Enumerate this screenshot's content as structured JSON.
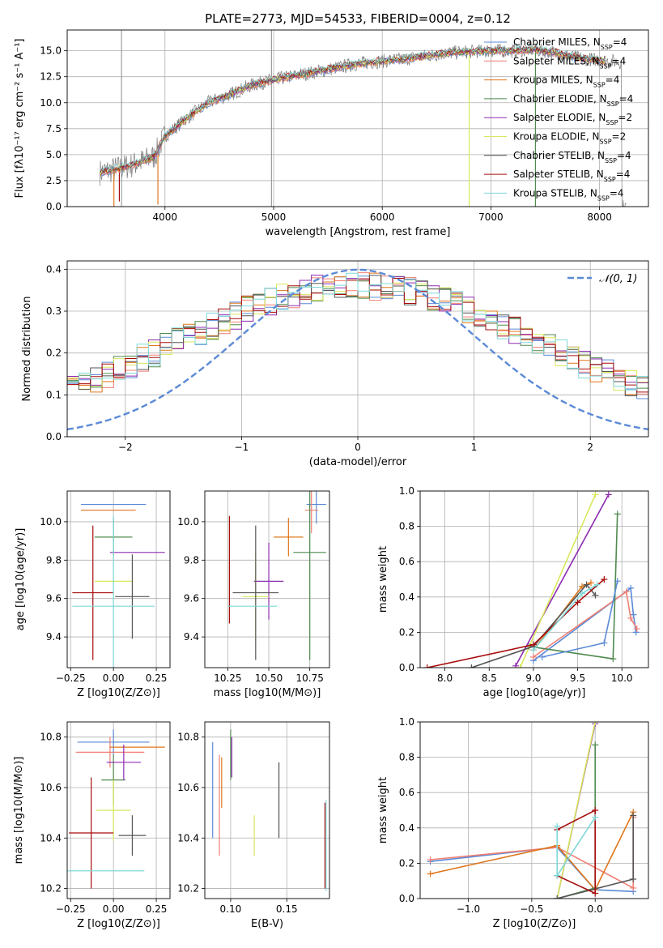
{
  "title": "PLATE=2773, MJD=54533, FIBERID=0004, z=0.12",
  "series": [
    {
      "name": "Chabrier MILES",
      "nssp": "4",
      "color": "#5b8ad6"
    },
    {
      "name": "Salpeter MILES",
      "nssp": "4",
      "color": "#f07f73"
    },
    {
      "name": "Kroupa MILES",
      "nssp": "4",
      "color": "#e0761b"
    },
    {
      "name": "Chabrier ELODIE",
      "nssp": "4",
      "color": "#4f8a4f"
    },
    {
      "name": "Salpeter ELODIE",
      "nssp": "2",
      "color": "#8e2bb0"
    },
    {
      "name": "Kroupa ELODIE",
      "nssp": "2",
      "color": "#d8e85a"
    },
    {
      "name": "Chabrier STELIB",
      "nssp": "4",
      "color": "#555555"
    },
    {
      "name": "Salpeter STELIB",
      "nssp": "4",
      "color": "#a80c0c"
    },
    {
      "name": "Kroupa STELIB",
      "nssp": "4",
      "color": "#7fd8d8"
    }
  ],
  "chart_data": [
    {
      "type": "line",
      "panel": "spectrum",
      "xlabel": "wavelength [Angstrom, rest frame]",
      "ylabel": "Flux [fλ10⁻¹⁷ erg cm⁻² s⁻¹ A⁻¹]",
      "xlim": [
        3100,
        8450
      ],
      "ylim": [
        0,
        17
      ],
      "xticks": [
        4000,
        5000,
        6000,
        7000,
        8000
      ],
      "yticks": [
        0.0,
        2.5,
        5.0,
        7.5,
        10.0,
        12.5,
        15.0
      ],
      "vlines": [
        3600,
        4980
      ],
      "data_anchor": {
        "x": [
          3400,
          3500,
          3700,
          3900,
          4000,
          4200,
          4400,
          4600,
          4800,
          5000,
          5200,
          5400,
          5600,
          5800,
          6000,
          6200,
          6400,
          6600,
          6800,
          7000,
          7200,
          7400,
          7600,
          7800,
          8000,
          8200
        ],
        "y": [
          3.3,
          3.5,
          4.0,
          4.8,
          6.8,
          8.5,
          10.0,
          10.8,
          11.7,
          12.2,
          12.6,
          13.0,
          13.4,
          13.8,
          14.0,
          14.2,
          14.5,
          14.8,
          14.9,
          15.0,
          15.0,
          15.1,
          14.8,
          14.3,
          14.1,
          13.9
        ]
      },
      "grid": true,
      "legend": "right"
    },
    {
      "type": "bar",
      "panel": "residual-histogram",
      "xlabel": "(data-model)/error",
      "ylabel": "Normed distribution",
      "xlim": [
        -2.5,
        2.5
      ],
      "ylim": [
        0,
        0.42
      ],
      "xticks": [
        -2,
        -1,
        0,
        1,
        2
      ],
      "yticks": [
        0.0,
        0.1,
        0.2,
        0.3,
        0.4
      ],
      "reference_curve": {
        "label": "𝒩(0, 1)",
        "color": "#5b8ad6"
      },
      "bin_width": 0.1,
      "grid": true,
      "legend": "top-right"
    },
    {
      "type": "scatter",
      "panel": "age-vs-Z",
      "xlabel": "Z [log10(Z/Z⊙)]",
      "ylabel": "age [log10(age/yr)]",
      "xlim": [
        -0.27,
        0.33
      ],
      "ylim": [
        9.24,
        10.16
      ],
      "xticks": [
        -0.25,
        0.0,
        0.25
      ],
      "yticks": [
        9.4,
        9.6,
        9.8,
        10.0
      ],
      "points": [
        {
          "x": 0.0,
          "xerr": 0.19,
          "y": 10.09,
          "yerr": 0.0
        },
        {
          "x": 0.06,
          "xerr": 0.0,
          "y": 9.96,
          "yerr": 0.0
        },
        {
          "x": -0.03,
          "xerr": 0.16,
          "y": 10.06,
          "yerr": 0.0
        },
        {
          "x": 0.0,
          "xerr": 0.11,
          "y": 9.92,
          "yerr": 0.1
        },
        {
          "x": 0.14,
          "xerr": 0.16,
          "y": 9.84,
          "yerr": 0.0
        },
        {
          "x": 0.0,
          "xerr": 0.11,
          "y": 9.69,
          "yerr": 0.0
        },
        {
          "x": 0.11,
          "xerr": 0.1,
          "y": 9.61,
          "yerr": 0.22
        },
        {
          "x": -0.12,
          "xerr": 0.12,
          "y": 9.63,
          "yerr": 0.35
        },
        {
          "x": 0.0,
          "xerr": 0.24,
          "y": 9.56,
          "yerr": 0.47
        }
      ],
      "grid": true
    },
    {
      "type": "scatter",
      "panel": "age-vs-mass",
      "xlabel": "mass [log10(M/M⊙)]",
      "ylabel": "",
      "xlim": [
        10.11,
        10.87
      ],
      "ylim": [
        9.24,
        10.16
      ],
      "xticks": [
        10.25,
        10.5,
        10.75
      ],
      "yticks": [
        9.4,
        9.6,
        9.8,
        10.0
      ],
      "points": [
        {
          "x": 10.79,
          "xerr": 0.06,
          "y": 10.09,
          "yerr": 0.1
        },
        {
          "x": 10.76,
          "xerr": 0.04,
          "y": 10.06,
          "yerr": 0.12
        },
        {
          "x": 10.62,
          "xerr": 0.09,
          "y": 9.92,
          "yerr": 0.1
        },
        {
          "x": 10.75,
          "xerr": 0.1,
          "y": 9.84,
          "yerr": 0.56
        },
        {
          "x": 10.5,
          "xerr": 0.09,
          "y": 9.69,
          "yerr": 0.2
        },
        {
          "x": 10.42,
          "xerr": 0.08,
          "y": 9.61,
          "yerr": 0.23
        },
        {
          "x": 10.42,
          "xerr": 0.14,
          "y": 9.63,
          "yerr": 0.35
        },
        {
          "x": 10.26,
          "xerr": 0.0,
          "y": 9.75,
          "yerr": 0.28
        },
        {
          "x": 10.4,
          "xerr": 0.15,
          "y": 9.56,
          "yerr": 0.0
        }
      ],
      "grid": true
    },
    {
      "type": "line",
      "panel": "massweight-vs-age",
      "xlabel": "age [log10(age/yr)]",
      "ylabel": "mass weight",
      "xlim": [
        7.72,
        10.3
      ],
      "ylim": [
        0,
        1.0
      ],
      "xticks": [
        8.0,
        8.5,
        9.0,
        9.5,
        10.0
      ],
      "yticks": [
        0.0,
        0.2,
        0.4,
        0.6,
        0.8,
        1.0
      ],
      "lines": [
        {
          "x": [
            9.0,
            10.1,
            10.13,
            10.16
          ],
          "y": [
            0.04,
            0.45,
            0.3,
            0.2
          ]
        },
        {
          "x": [
            9.0,
            10.05,
            10.1,
            10.17
          ],
          "y": [
            0.06,
            0.43,
            0.28,
            0.22
          ]
        },
        {
          "x": [
            9.0,
            9.55,
            9.65
          ],
          "y": [
            0.1,
            0.46,
            0.48
          ]
        },
        {
          "x": [
            8.95,
            9.9,
            9.95
          ],
          "y": [
            0.12,
            0.05,
            0.87
          ]
        },
        {
          "x": [
            8.8,
            9.85
          ],
          "y": [
            0.01,
            0.98
          ]
        },
        {
          "x": [
            8.85,
            9.7
          ],
          "y": [
            0.0,
            0.98
          ]
        },
        {
          "x": [
            8.3,
            9.0,
            9.6,
            9.7
          ],
          "y": [
            0.0,
            0.12,
            0.47,
            0.41
          ]
        },
        {
          "x": [
            7.8,
            9.0,
            9.5,
            9.8
          ],
          "y": [
            0.0,
            0.13,
            0.37,
            0.5
          ]
        },
        {
          "x": [
            9.0,
            9.55,
            9.72
          ],
          "y": [
            0.1,
            0.42,
            0.47
          ]
        },
        {
          "x": [
            9.1,
            9.8,
            9.95
          ],
          "y": [
            0.06,
            0.14,
            0.49
          ]
        }
      ],
      "grid": true
    },
    {
      "type": "scatter",
      "panel": "mass-vs-Z",
      "xlabel": "Z [log10(Z/Z⊙)]",
      "ylabel": "mass [log10(M/M⊙)]",
      "xlim": [
        -0.27,
        0.33
      ],
      "ylim": [
        10.16,
        10.86
      ],
      "xticks": [
        -0.25,
        0.0,
        0.25
      ],
      "yticks": [
        10.2,
        10.4,
        10.6,
        10.8
      ],
      "points": [
        {
          "x": 0.0,
          "xerr": 0.21,
          "y": 10.78,
          "yerr": 0.05
        },
        {
          "x": -0.02,
          "xerr": 0.2,
          "y": 10.74,
          "yerr": 0.06
        },
        {
          "x": 0.14,
          "xerr": 0.16,
          "y": 10.76,
          "yerr": 0.0
        },
        {
          "x": 0.0,
          "xerr": 0.07,
          "y": 10.63,
          "yerr": 0.1
        },
        {
          "x": 0.06,
          "xerr": 0.1,
          "y": 10.7,
          "yerr": 0.07
        },
        {
          "x": 0.0,
          "xerr": 0.1,
          "y": 10.51,
          "yerr": 0.12
        },
        {
          "x": 0.11,
          "xerr": 0.08,
          "y": 10.41,
          "yerr": 0.08
        },
        {
          "x": -0.13,
          "xerr": 0.13,
          "y": 10.42,
          "yerr": 0.22
        },
        {
          "x": -0.05,
          "xerr": 0.23,
          "y": 10.27,
          "yerr": 0.0
        }
      ],
      "grid": true
    },
    {
      "type": "scatter",
      "panel": "mass-vs-EBV",
      "xlabel": "E(B-V)",
      "ylabel": "",
      "xlim": [
        0.077,
        0.188
      ],
      "ylim": [
        10.16,
        10.86
      ],
      "xticks": [
        0.1,
        0.15
      ],
      "yticks": [
        10.2,
        10.4,
        10.6,
        10.8
      ],
      "points": [
        {
          "x": 0.084,
          "y": 10.59,
          "yerr": 0.19
        },
        {
          "x": 0.09,
          "y": 10.53,
          "yerr": 0.2
        },
        {
          "x": 0.092,
          "y": 10.62,
          "yerr": 0.1
        },
        {
          "x": 0.1,
          "y": 10.73,
          "yerr": 0.1
        },
        {
          "x": 0.101,
          "y": 10.72,
          "yerr": 0.08
        },
        {
          "x": 0.121,
          "y": 10.41,
          "yerr": 0.08
        },
        {
          "x": 0.143,
          "y": 10.55,
          "yerr": 0.15
        },
        {
          "x": 0.184,
          "y": 10.37,
          "yerr": 0.17
        },
        {
          "x": 0.185,
          "y": 10.37,
          "yerr": 0.18
        }
      ],
      "grid": true
    },
    {
      "type": "line",
      "panel": "massweight-vs-Z",
      "xlabel": "Z [log10(Z/Z⊙)]",
      "ylabel": "mass weight",
      "xlim": [
        -1.38,
        0.42
      ],
      "ylim": [
        0,
        1.0
      ],
      "xticks": [
        -1.0,
        -0.5,
        0.0
      ],
      "yticks": [
        0.0,
        0.2,
        0.4,
        0.6,
        0.8,
        1.0
      ],
      "lines": [
        {
          "x": [
            -1.3,
            -0.3,
            0.0,
            0.3
          ],
          "y": [
            0.21,
            0.29,
            0.05,
            0.04
          ]
        },
        {
          "x": [
            -1.3,
            -0.3,
            0.3,
            0.3
          ],
          "y": [
            0.22,
            0.29,
            0.06,
            0.46
          ]
        },
        {
          "x": [
            -1.3,
            -0.3,
            0.0,
            0.3
          ],
          "y": [
            0.14,
            0.3,
            0.05,
            0.49
          ]
        },
        {
          "x": [
            -0.3,
            0.0,
            0.0
          ],
          "y": [
            0.0,
            0.06,
            0.87
          ]
        },
        {
          "x": [
            -0.3,
            0.0
          ],
          "y": [
            0.0,
            0.99
          ]
        },
        {
          "x": [
            -0.3,
            0.0
          ],
          "y": [
            0.0,
            1.0
          ]
        },
        {
          "x": [
            -0.3,
            0.3,
            0.3
          ],
          "y": [
            0.0,
            0.11,
            0.47
          ]
        },
        {
          "x": [
            -0.3,
            0.0,
            0.0,
            -0.3
          ],
          "y": [
            0.39,
            0.5,
            0.03,
            0.13
          ]
        },
        {
          "x": [
            -0.3,
            -0.3,
            0.0
          ],
          "y": [
            0.41,
            0.13,
            0.46
          ]
        }
      ],
      "grid": true
    }
  ]
}
